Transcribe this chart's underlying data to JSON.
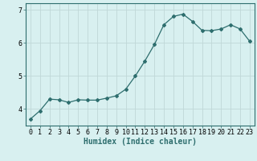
{
  "x": [
    0,
    1,
    2,
    3,
    4,
    5,
    6,
    7,
    8,
    9,
    10,
    11,
    12,
    13,
    14,
    15,
    16,
    17,
    18,
    19,
    20,
    21,
    22,
    23
  ],
  "y": [
    3.7,
    3.95,
    4.3,
    4.28,
    4.2,
    4.28,
    4.27,
    4.27,
    4.33,
    4.4,
    4.6,
    5.0,
    5.45,
    5.95,
    6.55,
    6.8,
    6.87,
    6.65,
    6.38,
    6.37,
    6.42,
    6.55,
    6.42,
    6.05
  ],
  "line_color": "#2e6e6e",
  "marker": "D",
  "marker_size": 2,
  "bg_color": "#d8f0f0",
  "grid_color": "#c0d8d8",
  "xlabel": "Humidex (Indice chaleur)",
  "xlabel_fontsize": 7,
  "tick_fontsize": 6,
  "yticks": [
    4,
    5,
    6,
    7
  ],
  "ylim": [
    3.5,
    7.2
  ],
  "xlim": [
    -0.5,
    23.5
  ]
}
